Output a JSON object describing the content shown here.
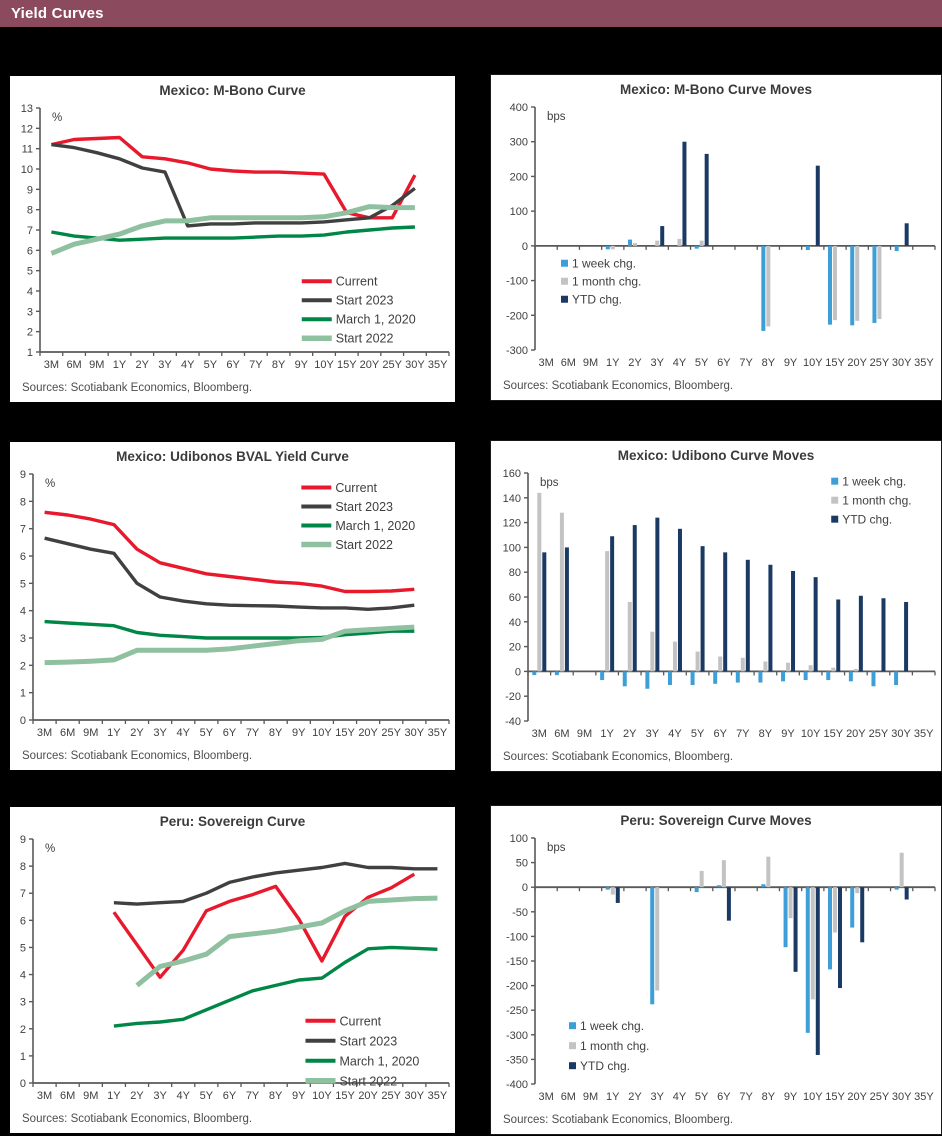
{
  "header": {
    "title": "Yield Curves"
  },
  "colors": {
    "header_bg": "#8c4a5e",
    "red": "#e8192c",
    "dark_gray": "#404040",
    "dark_green": "#008646",
    "light_green": "#8fc0a0",
    "light_blue": "#3e9fd8",
    "bar_gray": "#c3c3c3",
    "navy": "#1b3a63",
    "axis": "#595959",
    "text": "#404040"
  },
  "chart_data": [
    {
      "type": "line",
      "title": "Mexico: M-Bono Curve",
      "ylabel": "%",
      "ylim": [
        1,
        13
      ],
      "ystep": 1,
      "grid": false,
      "legend_position": "inside-bottom-right",
      "legend": {
        "x": 0.64,
        "y": 0.71,
        "dy": 19
      },
      "categories": [
        "3M",
        "6M",
        "9M",
        "1Y",
        "2Y",
        "3Y",
        "4Y",
        "5Y",
        "6Y",
        "7Y",
        "8Y",
        "9Y",
        "10Y",
        "15Y",
        "20Y",
        "25Y",
        "30Y",
        "35Y"
      ],
      "series": [
        {
          "name": "Current",
          "color_key": "red",
          "values": [
            11.2,
            11.45,
            11.5,
            11.55,
            10.6,
            10.5,
            10.3,
            10.0,
            9.9,
            9.85,
            9.85,
            9.8,
            9.75,
            7.85,
            7.6,
            7.6,
            9.7,
            null
          ]
        },
        {
          "name": "Start 2023",
          "color_key": "dark_gray",
          "values": [
            11.2,
            11.05,
            10.8,
            10.5,
            10.05,
            9.85,
            7.2,
            7.3,
            7.3,
            7.35,
            7.35,
            7.35,
            7.4,
            7.5,
            7.6,
            8.2,
            9.05,
            null
          ]
        },
        {
          "name": "March 1, 2020",
          "color_key": "dark_green",
          "values": [
            6.9,
            6.7,
            6.6,
            6.5,
            6.55,
            6.6,
            6.6,
            6.6,
            6.6,
            6.65,
            6.7,
            6.7,
            6.75,
            6.9,
            7.0,
            7.1,
            7.15,
            null
          ]
        },
        {
          "name": "Start 2022",
          "color_key": "light_green",
          "values": [
            5.85,
            6.3,
            6.55,
            6.8,
            7.2,
            7.45,
            7.45,
            7.6,
            7.6,
            7.6,
            7.6,
            7.6,
            7.65,
            7.85,
            8.15,
            8.1,
            8.1,
            null
          ]
        }
      ],
      "source": "Sources: Scotiabank Economics, Bloomberg."
    },
    {
      "type": "bar",
      "title": "Mexico: M-Bono Curve Moves",
      "ylabel": "bps",
      "ylim": [
        -300,
        400
      ],
      "ystep": 100,
      "grid": false,
      "legend_position": "inside-left-below-zero",
      "legend": {
        "x": 0.065,
        "y": 0.645,
        "dy": 18
      },
      "categories": [
        "3M",
        "6M",
        "9M",
        "1Y",
        "2Y",
        "3Y",
        "4Y",
        "5Y",
        "6Y",
        "7Y",
        "8Y",
        "9Y",
        "10Y",
        "15Y",
        "20Y",
        "25Y",
        "30Y",
        "35Y"
      ],
      "series": [
        {
          "name": "1 week chg.",
          "color_key": "light_blue",
          "values": [
            0,
            0,
            0,
            -10,
            18,
            0,
            0,
            -8,
            0,
            0,
            -245,
            0,
            -12,
            -227,
            -229,
            -222,
            -15,
            0
          ]
        },
        {
          "name": "1 month chg.",
          "color_key": "bar_gray",
          "values": [
            0,
            0,
            0,
            -10,
            8,
            15,
            20,
            15,
            0,
            0,
            -232,
            0,
            0,
            -214,
            -216,
            -211,
            0,
            0
          ]
        },
        {
          "name": "YTD chg.",
          "color_key": "navy",
          "values": [
            0,
            0,
            0,
            0,
            0,
            57,
            300,
            265,
            0,
            0,
            0,
            0,
            231,
            0,
            0,
            0,
            65,
            0
          ]
        }
      ],
      "source": "Sources: Scotiabank Economics, Bloomberg."
    },
    {
      "type": "line",
      "title": "Mexico: Udibonos BVAL Yield Curve",
      "ylabel": "%",
      "ylim": [
        0,
        9
      ],
      "ystep": 1,
      "grid": false,
      "legend_position": "inside-top-right",
      "legend": {
        "x": 0.645,
        "y": 0.055,
        "dy": 19
      },
      "categories": [
        "3M",
        "6M",
        "9M",
        "1Y",
        "2Y",
        "3Y",
        "4Y",
        "5Y",
        "6Y",
        "7Y",
        "8Y",
        "9Y",
        "10Y",
        "15Y",
        "20Y",
        "25Y",
        "30Y",
        "35Y"
      ],
      "series": [
        {
          "name": "Current",
          "color_key": "red",
          "values": [
            7.6,
            7.5,
            7.35,
            7.15,
            6.25,
            5.75,
            5.55,
            5.35,
            5.25,
            5.15,
            5.05,
            5.0,
            4.9,
            4.7,
            4.7,
            4.72,
            4.78,
            null
          ]
        },
        {
          "name": "Start 2023",
          "color_key": "dark_gray",
          "values": [
            6.65,
            6.45,
            6.25,
            6.1,
            5.0,
            4.5,
            4.35,
            4.25,
            4.2,
            4.18,
            4.17,
            4.13,
            4.1,
            4.1,
            4.05,
            4.1,
            4.2,
            null
          ]
        },
        {
          "name": "March 1, 2020",
          "color_key": "dark_green",
          "values": [
            3.6,
            3.55,
            3.5,
            3.45,
            3.2,
            3.1,
            3.05,
            3.0,
            3.0,
            3.0,
            3.0,
            3.0,
            3.02,
            3.12,
            3.18,
            3.25,
            3.25,
            null
          ]
        },
        {
          "name": "Start 2022",
          "color_key": "light_green",
          "values": [
            2.1,
            2.12,
            2.15,
            2.2,
            2.55,
            2.55,
            2.55,
            2.55,
            2.6,
            2.7,
            2.8,
            2.9,
            2.95,
            3.25,
            3.3,
            3.35,
            3.4,
            null
          ]
        }
      ],
      "source": "Sources: Scotiabank Economics, Bloomberg."
    },
    {
      "type": "bar",
      "title": "Mexico: Udibono Curve Moves",
      "ylabel": "bps",
      "ylim": [
        -40,
        160
      ],
      "ystep": 20,
      "grid": false,
      "legend_position": "inside-top-right",
      "legend": {
        "x": 0.745,
        "y": 0.035,
        "dy": 19
      },
      "categories": [
        "3M",
        "6M",
        "9M",
        "1Y",
        "2Y",
        "3Y",
        "4Y",
        "5Y",
        "6Y",
        "7Y",
        "8Y",
        "9Y",
        "10Y",
        "15Y",
        "20Y",
        "25Y",
        "30Y",
        "35Y"
      ],
      "series": [
        {
          "name": "1 week chg.",
          "color_key": "light_blue",
          "values": [
            -3,
            -3,
            0,
            -7,
            -12,
            -14,
            -11,
            -11,
            -10,
            -9,
            -9,
            -8,
            -7,
            -7,
            -8,
            -12,
            -11,
            0
          ]
        },
        {
          "name": "1 month chg.",
          "color_key": "bar_gray",
          "values": [
            144,
            128,
            0,
            97,
            56,
            32,
            24,
            16,
            12,
            11,
            8,
            7,
            5,
            3,
            2,
            0,
            0,
            0
          ]
        },
        {
          "name": "YTD chg.",
          "color_key": "navy",
          "values": [
            96,
            100,
            0,
            109,
            118,
            124,
            115,
            101,
            96,
            90,
            86,
            81,
            76,
            58,
            61,
            59,
            56,
            0
          ]
        }
      ],
      "source": "Sources: Scotiabank Economics, Bloomberg."
    },
    {
      "type": "line",
      "title": "Peru: Sovereign Curve",
      "ylabel": "%",
      "ylim": [
        0,
        9
      ],
      "ystep": 1,
      "grid": false,
      "legend_position": "inside-bottom-right",
      "legend": {
        "x": 0.655,
        "y": 0.745,
        "dy": 20
      },
      "categories": [
        "3M",
        "6M",
        "9M",
        "1Y",
        "2Y",
        "3Y",
        "4Y",
        "5Y",
        "6Y",
        "7Y",
        "8Y",
        "9Y",
        "10Y",
        "15Y",
        "20Y",
        "25Y",
        "30Y",
        "35Y"
      ],
      "series": [
        {
          "name": "Current",
          "color_key": "red",
          "values": [
            null,
            null,
            null,
            6.3,
            5.1,
            3.9,
            4.9,
            6.35,
            6.7,
            6.95,
            7.25,
            6.05,
            4.5,
            6.15,
            6.85,
            7.2,
            7.7,
            null
          ]
        },
        {
          "name": "Start 2023",
          "color_key": "dark_gray",
          "values": [
            null,
            null,
            null,
            6.65,
            6.6,
            6.65,
            6.7,
            7.0,
            7.4,
            7.6,
            7.75,
            7.85,
            7.95,
            8.1,
            7.95,
            7.95,
            7.9,
            7.9
          ]
        },
        {
          "name": "March 1, 2020",
          "color_key": "dark_green",
          "values": [
            null,
            null,
            null,
            2.1,
            2.2,
            2.25,
            2.35,
            2.7,
            3.05,
            3.4,
            3.6,
            3.8,
            3.87,
            4.45,
            4.95,
            5.0,
            4.97,
            4.93
          ]
        },
        {
          "name": "Start 2022",
          "color_key": "light_green",
          "values": [
            null,
            null,
            null,
            null,
            3.6,
            4.3,
            4.5,
            4.75,
            5.4,
            5.5,
            5.6,
            5.75,
            5.9,
            6.35,
            6.7,
            6.75,
            6.8,
            6.82
          ]
        }
      ],
      "source": "Sources: Scotiabank Economics, Bloomberg."
    },
    {
      "type": "bar",
      "title": "Peru: Sovereign Curve Moves",
      "ylabel": "bps",
      "ylim": [
        -400,
        100
      ],
      "ystep": 50,
      "grid": false,
      "legend_position": "inside-bottom-left",
      "legend": {
        "x": 0.085,
        "y": 0.765,
        "dy": 20
      },
      "categories": [
        "3M",
        "6M",
        "9M",
        "1Y",
        "2Y",
        "3Y",
        "4Y",
        "5Y",
        "6Y",
        "7Y",
        "8Y",
        "9Y",
        "10Y",
        "15Y",
        "20Y",
        "25Y",
        "30Y",
        "35Y"
      ],
      "series": [
        {
          "name": "1 week chg.",
          "color_key": "light_blue",
          "values": [
            0,
            0,
            0,
            -5,
            0,
            -238,
            0,
            -10,
            4,
            0,
            6,
            -122,
            -296,
            -167,
            -82,
            0,
            -5,
            0
          ]
        },
        {
          "name": "1 month chg.",
          "color_key": "bar_gray",
          "values": [
            0,
            0,
            0,
            -15,
            0,
            -210,
            0,
            33,
            55,
            0,
            62,
            -63,
            -228,
            -92,
            -12,
            0,
            70,
            0
          ]
        },
        {
          "name": "YTD chg.",
          "color_key": "navy",
          "values": [
            0,
            0,
            0,
            -32,
            0,
            0,
            0,
            0,
            -68,
            0,
            0,
            -172,
            -341,
            -205,
            -112,
            0,
            -25,
            0
          ]
        }
      ],
      "source": "Sources: Scotiabank Economics, Bloomberg."
    }
  ]
}
